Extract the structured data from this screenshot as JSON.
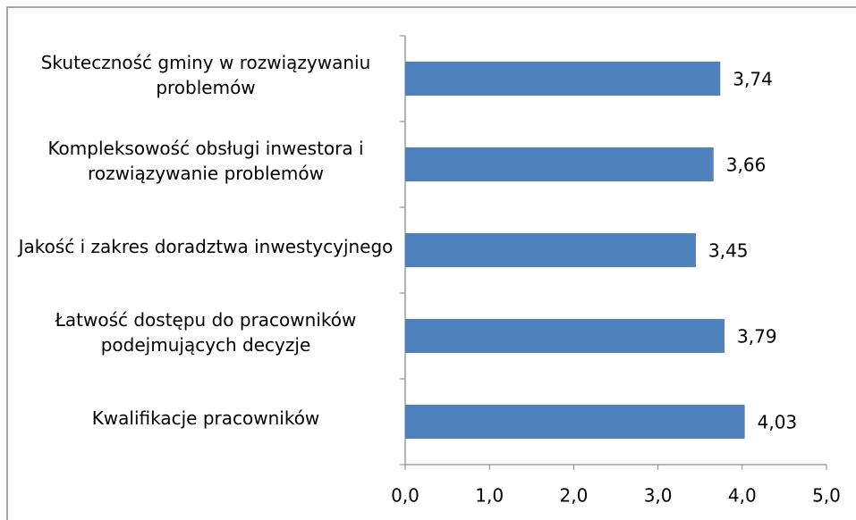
{
  "chart_data": {
    "type": "bar",
    "orientation": "horizontal",
    "categories": [
      "Skuteczność gminy w rozwiązywaniu problemów",
      "Kompleksowość obsługi inwestora i rozwiązywanie problemów",
      "Jakość i zakres doradztwa inwestycyjnego",
      "Łatwość dostępu do pracowników podejmujących decyzje",
      "Kwalifikacje pracowników"
    ],
    "values": [
      3.74,
      3.66,
      3.45,
      3.79,
      4.03
    ],
    "value_labels": [
      "3,74",
      "3,66",
      "3,45",
      "3,79",
      "4,03"
    ],
    "color": "#4f81bd",
    "xlim": [
      0,
      5
    ],
    "xticks": [
      {
        "value": 0,
        "label": "0,0"
      },
      {
        "value": 1,
        "label": "1,0"
      },
      {
        "value": 2,
        "label": "2,0"
      },
      {
        "value": 3,
        "label": "3,0"
      },
      {
        "value": 4,
        "label": "4,0"
      },
      {
        "value": 5,
        "label": "5,0"
      }
    ]
  }
}
